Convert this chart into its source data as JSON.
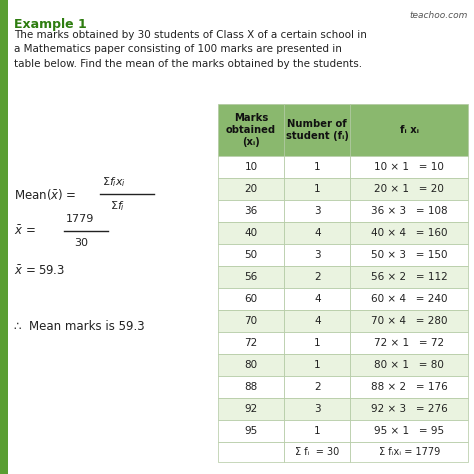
{
  "title": "Example 1",
  "description": "The marks obtained by 30 students of Class X of a certain school in\na Mathematics paper consisting of 100 marks are presented in\ntable below. Find the mean of the marks obtained by the students.",
  "watermark": "teachoo.com",
  "col_headers": [
    "Marks\nobtained\n(xᵢ)",
    "Number of\nstudent (fᵢ)",
    "fᵢ xᵢ"
  ],
  "rows": [
    [
      "10",
      "1",
      "10 × 1   = 10"
    ],
    [
      "20",
      "1",
      "20 × 1   = 20"
    ],
    [
      "36",
      "3",
      "36 × 3   = 108"
    ],
    [
      "40",
      "4",
      "40 × 4   = 160"
    ],
    [
      "50",
      "3",
      "50 × 3   = 150"
    ],
    [
      "56",
      "2",
      "56 × 2   = 112"
    ],
    [
      "60",
      "4",
      "60 × 4   = 240"
    ],
    [
      "70",
      "4",
      "70 × 4   = 280"
    ],
    [
      "72",
      "1",
      "72 × 1   = 72"
    ],
    [
      "80",
      "1",
      "80 × 1   = 80"
    ],
    [
      "88",
      "2",
      "88 × 2   = 176"
    ],
    [
      "92",
      "3",
      "92 × 3   = 276"
    ],
    [
      "95",
      "1",
      "95 × 1   = 95"
    ]
  ],
  "footer_col1": "Σ fᵢ  = 30",
  "footer_col2": "Σ fᵢxᵢ = 1779",
  "header_bg": "#8ab86e",
  "row_bg_light": "#eaf3e0",
  "row_bg_white": "#ffffff",
  "border_color": "#b0c8a0",
  "bg_color": "#ffffff",
  "green_bar_color": "#5a9e32",
  "text_dark": "#222222",
  "watermark_color": "#555555"
}
